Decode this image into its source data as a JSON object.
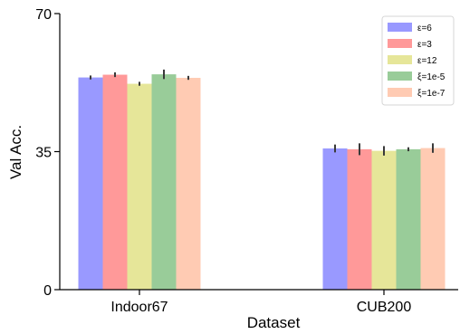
{
  "chart_data": {
    "type": "bar",
    "xlabel": "Dataset",
    "ylabel": "Val Acc.",
    "ylim": [
      0,
      70
    ],
    "yticks": [
      0,
      35,
      70
    ],
    "categories": [
      "Indoor67",
      "CUB200"
    ],
    "grid": false,
    "legend_position": "top-right",
    "series": [
      {
        "name": "ε=6",
        "color": "#9999ff",
        "values": [
          53.8,
          35.8
        ],
        "errors": [
          0.5,
          1.0
        ]
      },
      {
        "name": "ε=3",
        "color": "#ff9999",
        "values": [
          54.5,
          35.6
        ],
        "errors": [
          0.6,
          1.5
        ]
      },
      {
        "name": "ε=12",
        "color": "#e6e699",
        "values": [
          52.2,
          35.2
        ],
        "errors": [
          0.5,
          1.2
        ]
      },
      {
        "name": "ξ=1e-5",
        "color": "#99cc99",
        "values": [
          54.6,
          35.6
        ],
        "errors": [
          1.2,
          0.5
        ]
      },
      {
        "name": "ξ=1e-7",
        "color": "#ffcbb3",
        "values": [
          53.7,
          35.9
        ],
        "errors": [
          0.5,
          1.2
        ]
      }
    ]
  }
}
